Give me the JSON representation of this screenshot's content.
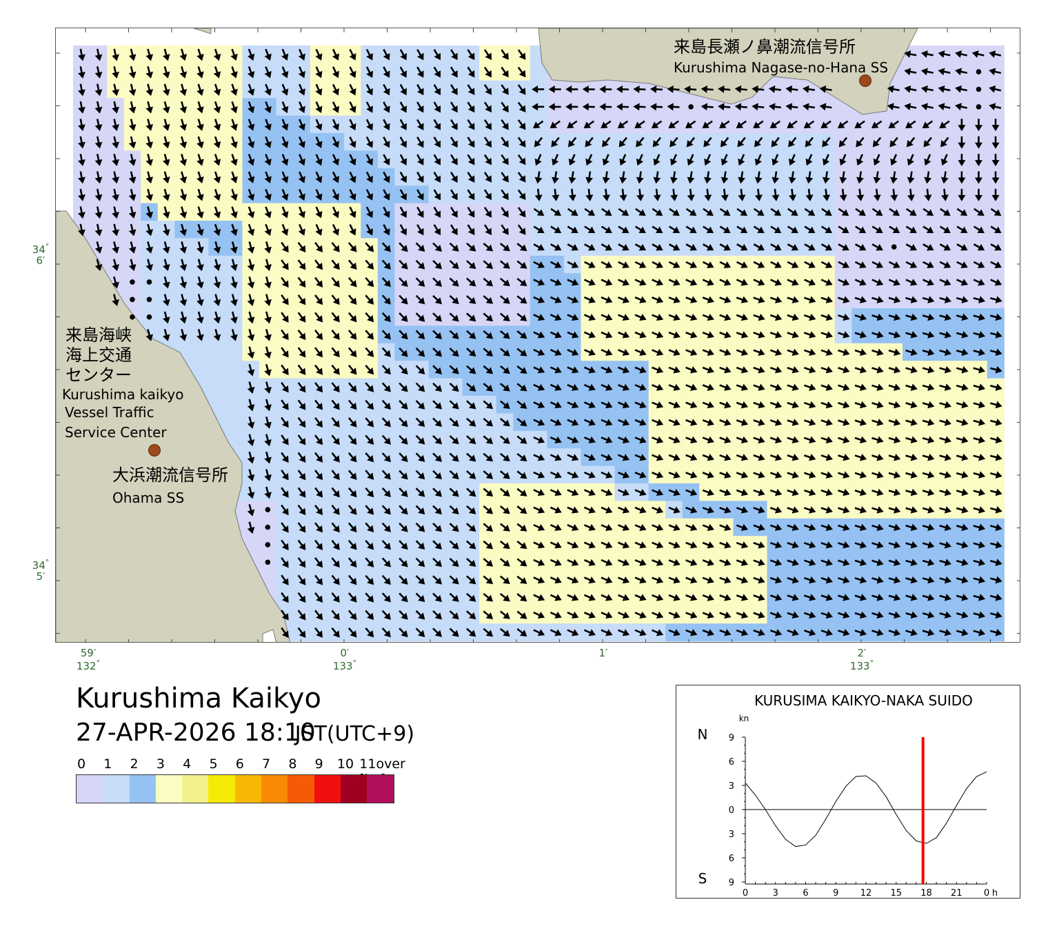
{
  "map": {
    "stations": [
      {
        "name_jp": "来島長瀬ノ鼻潮流信号所",
        "name_en": "Kurushima Nagase-no-Hana SS"
      },
      {
        "name_jp": "大浜潮流信号所",
        "name_en": "Ohama SS"
      }
    ],
    "vts": {
      "name_jp_1": "来島海峡",
      "name_jp_2": "海上交通",
      "name_jp_3": "センター",
      "name_en_1": "Kurushima kaikyo",
      "name_en_2": "Vessel Traffic",
      "name_en_3": "Service Center"
    },
    "lat_labels": [
      {
        "deg": "34",
        "min": "6′"
      },
      {
        "deg": "34",
        "min": "5′"
      }
    ],
    "lon_labels": [
      {
        "min": "59′",
        "deg": "132"
      },
      {
        "min": "0′",
        "deg": "133"
      },
      {
        "min": "1′",
        "deg": ""
      },
      {
        "min": "2′",
        "deg": "133"
      }
    ]
  },
  "title": "Kurushima Kaikyo",
  "datetime": "27-APR-2026 18:10",
  "timezone": "JST(UTC+9)",
  "legend": {
    "labels": [
      "0",
      "1",
      "2",
      "3",
      "4",
      "5",
      "6",
      "7",
      "8",
      "9",
      "10",
      "11over [kn]"
    ],
    "colors": [
      "#d6d6f7",
      "#c6dcf8",
      "#95c2f2",
      "#fbfbc4",
      "#f3f08e",
      "#f5ea05",
      "#f8b705",
      "#f88a05",
      "#f55a05",
      "#f01010",
      "#a00020",
      "#b0105a"
    ]
  },
  "tide_chart": {
    "title": "KURUSIMA KAIKYO-NAKA SUIDO",
    "unit": "kn",
    "north_label": "N",
    "south_label": "S",
    "y_ticks": [
      "9",
      "6",
      "3",
      "0",
      "3",
      "6",
      "9"
    ],
    "x_ticks": [
      "0",
      "3",
      "6",
      "9",
      "12",
      "15",
      "18",
      "21",
      "0"
    ],
    "x_unit": "h",
    "current_hour": 17.67
  },
  "chart_data": {
    "type": "line",
    "title": "KURUSIMA KAIKYO-NAKA SUIDO",
    "ylabel": "kn",
    "xlabel": "h",
    "ylim": [
      -9,
      9
    ],
    "xlim": [
      0,
      24
    ],
    "series": [
      {
        "name": "",
        "x": [
          0,
          1,
          2,
          3,
          4,
          5,
          6,
          7,
          8,
          9,
          10,
          11,
          12,
          13,
          14,
          15,
          16,
          17,
          18,
          19,
          20,
          21,
          22,
          23,
          24
        ],
        "values": [
          3.3,
          1.8,
          0,
          -2,
          -3.7,
          -4.6,
          -4.4,
          -3.2,
          -1.2,
          1,
          2.9,
          4.1,
          4.2,
          3.3,
          1.6,
          -0.6,
          -2.6,
          -3.9,
          -4.2,
          -3.5,
          -1.7,
          0.5,
          2.6,
          4.1,
          4.7
        ]
      }
    ],
    "marker_hour": 17.67
  }
}
